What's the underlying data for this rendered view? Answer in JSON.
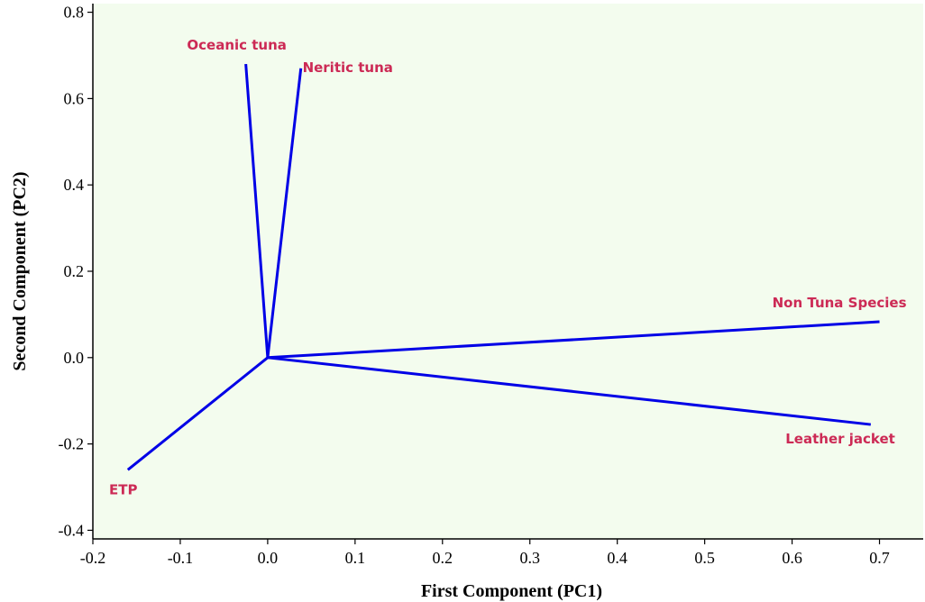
{
  "chart_data": {
    "type": "line",
    "title": "",
    "xlabel": "First Component (PC1)",
    "ylabel": "Second Component (PC2)",
    "xlim": [
      -0.2,
      0.75
    ],
    "ylim": [
      -0.42,
      0.82
    ],
    "xticks": [
      -0.2,
      -0.1,
      0.0,
      0.1,
      0.2,
      0.3,
      0.4,
      0.5,
      0.6,
      0.7
    ],
    "xtick_labels": [
      "-0.2",
      "-0.1",
      "0.0",
      "0.1",
      "0.2",
      "0.3",
      "0.4",
      "0.5",
      "0.6",
      "0.7"
    ],
    "yticks": [
      -0.4,
      -0.2,
      0.0,
      0.2,
      0.4,
      0.6,
      0.8
    ],
    "ytick_labels": [
      "-0.4",
      "-0.2",
      "0.0",
      "0.2",
      "0.4",
      "0.6",
      "0.8"
    ],
    "grid": false,
    "origin": [
      0,
      0
    ],
    "series": [
      {
        "name": "Oceanic tuna",
        "x": [
          0,
          -0.025
        ],
        "y": [
          0,
          0.68
        ]
      },
      {
        "name": "Neritic tuna",
        "x": [
          0,
          0.038
        ],
        "y": [
          0,
          0.67
        ]
      },
      {
        "name": "Non Tuna Species",
        "x": [
          0,
          0.7
        ],
        "y": [
          0,
          0.083
        ]
      },
      {
        "name": "Leather jacket",
        "x": [
          0,
          0.69
        ],
        "y": [
          0,
          -0.155
        ]
      },
      {
        "name": "ETP",
        "x": [
          0,
          -0.16
        ],
        "y": [
          0,
          -0.26
        ]
      }
    ]
  },
  "colors": {
    "plot_background": "#f3fcee",
    "vector_line": "#0000e6",
    "label_text": "#cc2a55",
    "axis": "#000000"
  }
}
